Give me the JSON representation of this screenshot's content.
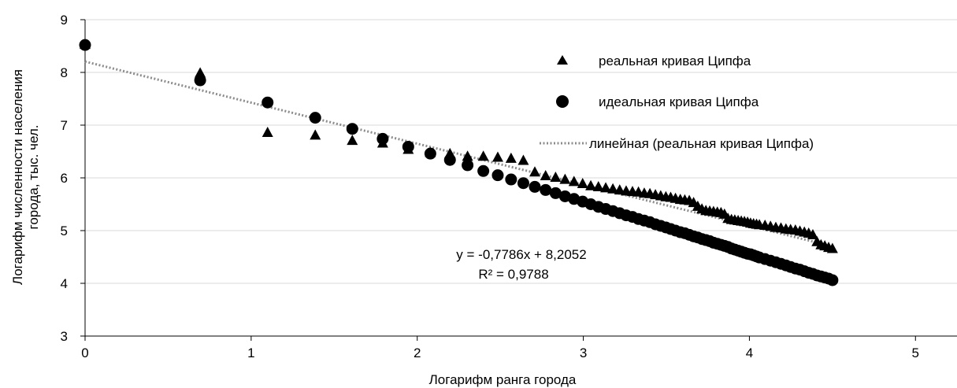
{
  "chart_data": {
    "type": "scatter",
    "title": "",
    "xlabel": "Логарифм ранга города",
    "ylabel_lines": [
      "Логарифм численности населения",
      "города, тыс. чел."
    ],
    "xlim": [
      0,
      5.25
    ],
    "ylim": [
      3,
      9
    ],
    "x_ticks": [
      0,
      1,
      2,
      3,
      4,
      5
    ],
    "y_ticks": [
      3,
      4,
      5,
      6,
      7,
      8,
      9
    ],
    "grid": "horizontal",
    "legend_position": "top-right",
    "legend": {
      "real": "реальная кривая Ципфа",
      "ideal": "идеальная кривая Ципфа",
      "trend": "линейная (реальная кривая Ципфа)"
    },
    "equation": {
      "line1": "y = -0,7786x + 8,2052",
      "line2": "R² = 0,9788"
    },
    "trendline": {
      "slope": -0.7786,
      "intercept": 8.2052,
      "x_range": [
        0,
        4.5
      ]
    },
    "series": [
      {
        "name": "реальная кривая Ципфа",
        "marker": "triangle",
        "points": [
          [
            0,
            8.52
          ],
          [
            0.693,
            7.98
          ],
          [
            1.099,
            6.85
          ],
          [
            1.386,
            6.8
          ],
          [
            1.609,
            6.7
          ],
          [
            1.792,
            6.65
          ],
          [
            1.946,
            6.53
          ],
          [
            2.079,
            6.47
          ],
          [
            2.197,
            6.45
          ],
          [
            2.303,
            6.4
          ],
          [
            2.398,
            6.4
          ],
          [
            2.485,
            6.38
          ],
          [
            2.565,
            6.36
          ],
          [
            2.639,
            6.32
          ],
          [
            2.708,
            6.1
          ],
          [
            2.773,
            6.03
          ],
          [
            2.833,
            6.0
          ],
          [
            2.89,
            5.96
          ],
          [
            2.944,
            5.92
          ],
          [
            2.996,
            5.88
          ],
          [
            3.045,
            5.84
          ],
          [
            3.091,
            5.82
          ],
          [
            3.135,
            5.8
          ],
          [
            3.178,
            5.78
          ],
          [
            3.219,
            5.76
          ],
          [
            3.258,
            5.74
          ],
          [
            3.296,
            5.73
          ],
          [
            3.332,
            5.72
          ],
          [
            3.367,
            5.7
          ],
          [
            3.401,
            5.69
          ],
          [
            3.434,
            5.67
          ],
          [
            3.466,
            5.65
          ],
          [
            3.497,
            5.63
          ],
          [
            3.526,
            5.62
          ],
          [
            3.555,
            5.6
          ],
          [
            3.584,
            5.58
          ],
          [
            3.611,
            5.57
          ],
          [
            3.638,
            5.56
          ],
          [
            3.664,
            5.52
          ],
          [
            3.689,
            5.45
          ],
          [
            3.714,
            5.4
          ],
          [
            3.738,
            5.37
          ],
          [
            3.761,
            5.36
          ],
          [
            3.784,
            5.35
          ],
          [
            3.807,
            5.34
          ],
          [
            3.829,
            5.33
          ],
          [
            3.85,
            5.3
          ],
          [
            3.871,
            5.22
          ],
          [
            3.892,
            5.2
          ],
          [
            3.912,
            5.19
          ],
          [
            3.932,
            5.18
          ],
          [
            3.951,
            5.17
          ],
          [
            3.97,
            5.16
          ],
          [
            3.989,
            5.15
          ],
          [
            4.007,
            5.13
          ],
          [
            4.025,
            5.12
          ],
          [
            4.043,
            5.11
          ],
          [
            4.06,
            5.1
          ],
          [
            4.094,
            5.09
          ],
          [
            4.127,
            5.07
          ],
          [
            4.159,
            5.05
          ],
          [
            4.19,
            5.04
          ],
          [
            4.22,
            5.02
          ],
          [
            4.248,
            5.01
          ],
          [
            4.277,
            5.0
          ],
          [
            4.304,
            4.98
          ],
          [
            4.331,
            4.96
          ],
          [
            4.357,
            4.94
          ],
          [
            4.382,
            4.91
          ],
          [
            4.407,
            4.78
          ],
          [
            4.431,
            4.72
          ],
          [
            4.454,
            4.7
          ],
          [
            4.477,
            4.67
          ],
          [
            4.5,
            4.65
          ]
        ]
      },
      {
        "name": "идеальная кривая Ципфа",
        "marker": "circle",
        "points": [
          [
            0,
            8.52
          ],
          [
            0.693,
            7.85
          ],
          [
            1.099,
            7.43
          ],
          [
            1.386,
            7.14
          ],
          [
            1.609,
            6.93
          ],
          [
            1.792,
            6.74
          ],
          [
            1.946,
            6.59
          ],
          [
            2.079,
            6.46
          ],
          [
            2.197,
            6.34
          ],
          [
            2.303,
            6.24
          ],
          [
            2.398,
            6.13
          ],
          [
            2.485,
            6.05
          ],
          [
            2.565,
            5.97
          ],
          [
            2.639,
            5.9
          ],
          [
            2.708,
            5.83
          ],
          [
            2.773,
            5.77
          ],
          [
            2.833,
            5.71
          ],
          [
            2.89,
            5.65
          ],
          [
            2.944,
            5.6
          ],
          [
            2.996,
            5.55
          ],
          [
            3.045,
            5.5
          ],
          [
            3.091,
            5.45
          ],
          [
            3.135,
            5.41
          ],
          [
            3.178,
            5.37
          ],
          [
            3.219,
            5.33
          ],
          [
            3.258,
            5.29
          ],
          [
            3.296,
            5.26
          ],
          [
            3.332,
            5.22
          ],
          [
            3.367,
            5.19
          ],
          [
            3.401,
            5.16
          ],
          [
            3.434,
            5.12
          ],
          [
            3.466,
            5.09
          ],
          [
            3.497,
            5.06
          ],
          [
            3.526,
            5.03
          ],
          [
            3.555,
            5.0
          ],
          [
            3.584,
            4.97
          ],
          [
            3.611,
            4.95
          ],
          [
            3.638,
            4.92
          ],
          [
            3.664,
            4.89
          ],
          [
            3.689,
            4.87
          ],
          [
            3.714,
            4.84
          ],
          [
            3.738,
            4.82
          ],
          [
            3.761,
            4.8
          ],
          [
            3.784,
            4.77
          ],
          [
            3.807,
            4.75
          ],
          [
            3.829,
            4.73
          ],
          [
            3.85,
            4.71
          ],
          [
            3.871,
            4.69
          ],
          [
            3.892,
            4.66
          ],
          [
            3.912,
            4.64
          ],
          [
            3.932,
            4.62
          ],
          [
            3.951,
            4.6
          ],
          [
            3.97,
            4.58
          ],
          [
            3.989,
            4.56
          ],
          [
            4.007,
            4.55
          ],
          [
            4.025,
            4.53
          ],
          [
            4.043,
            4.51
          ],
          [
            4.06,
            4.49
          ],
          [
            4.094,
            4.46
          ],
          [
            4.127,
            4.43
          ],
          [
            4.159,
            4.4
          ],
          [
            4.19,
            4.37
          ],
          [
            4.22,
            4.34
          ],
          [
            4.248,
            4.31
          ],
          [
            4.277,
            4.28
          ],
          [
            4.304,
            4.26
          ],
          [
            4.331,
            4.23
          ],
          [
            4.357,
            4.2
          ],
          [
            4.382,
            4.18
          ],
          [
            4.407,
            4.15
          ],
          [
            4.431,
            4.13
          ],
          [
            4.454,
            4.11
          ],
          [
            4.477,
            4.09
          ],
          [
            4.5,
            4.06
          ]
        ]
      }
    ]
  },
  "colors": {
    "marker": "#000000",
    "trend": "#8c8c8c",
    "grid": "#d9d9d9"
  }
}
